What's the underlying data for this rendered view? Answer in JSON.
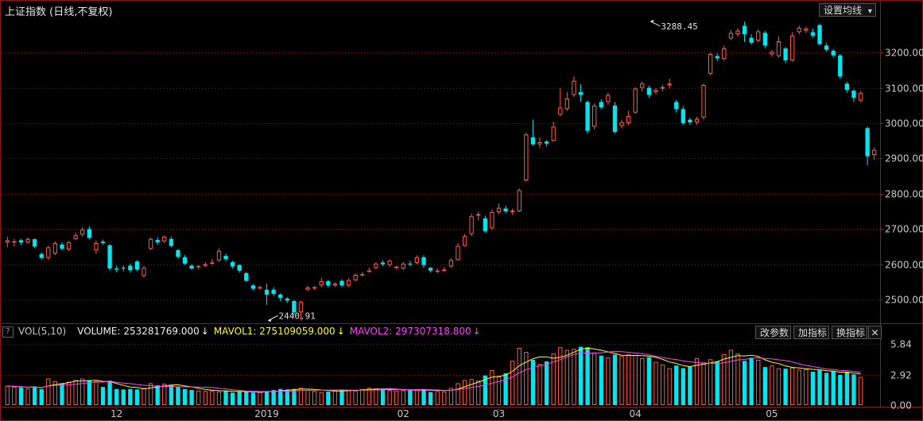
{
  "header": {
    "title": "上证指数 (日线,不复权)",
    "settings_button": "设置均线",
    "settings_arrow": "▾"
  },
  "volume_header": {
    "help": "?",
    "indicator": "VOL(5,10)",
    "volume": "VOLUME: 253281769.000",
    "mavol1": "MAVOL1: 275109059.000",
    "mavol2": "MAVOL2: 297307318.800",
    "arrow": "↓",
    "btn_modify": "改参数",
    "btn_add": "加指标",
    "btn_switch": "换指标",
    "btn_close": "✕"
  },
  "colors": {
    "up": "#ff5a4a",
    "down": "#00e5ee",
    "mavol1": "#ffff00",
    "mavol2": "#ff40ff",
    "grid": "#7a1a1a",
    "axis": "#8a1a1a"
  },
  "chart_data": {
    "type": "candlestick",
    "price_ticks": [
      2500,
      2600,
      2700,
      2800,
      2900,
      3000,
      3100,
      3200
    ],
    "price_tick_labels": [
      "2500.00",
      "2600.00",
      "2700.00",
      "2800.00",
      "2900.00",
      "3000.00",
      "3100.00",
      "3200.00"
    ],
    "ylim": [
      2435,
      3295
    ],
    "volume_ticks": [
      0,
      2.92,
      5.84
    ],
    "volume_tick_labels": [
      "0.00",
      "2.92",
      "5.84"
    ],
    "volume_ylim": [
      0,
      6.1
    ],
    "x_labels": [
      {
        "index": 16,
        "label": "12"
      },
      {
        "index": 38,
        "label": "2019"
      },
      {
        "index": 58,
        "label": "02"
      },
      {
        "index": 72,
        "label": "03"
      },
      {
        "index": 92,
        "label": "04"
      },
      {
        "index": 112,
        "label": "05"
      }
    ],
    "annotations": [
      {
        "index": 38,
        "value": 2440.91,
        "label": "2440.91",
        "kind": "low"
      },
      {
        "index": 94,
        "value": 3288.45,
        "label": "3288.45",
        "kind": "high"
      }
    ],
    "candles": [
      [
        2662,
        2668,
        2648,
        2678
      ],
      [
        2662,
        2665,
        2650,
        2672
      ],
      [
        2668,
        2662,
        2655,
        2672
      ],
      [
        2662,
        2672,
        2658,
        2676
      ],
      [
        2671,
        2650,
        2646,
        2673
      ],
      [
        2629,
        2618,
        2614,
        2634
      ],
      [
        2618,
        2648,
        2612,
        2652
      ],
      [
        2630,
        2660,
        2626,
        2665
      ],
      [
        2656,
        2644,
        2640,
        2662
      ],
      [
        2642,
        2662,
        2638,
        2666
      ],
      [
        2672,
        2682,
        2668,
        2690
      ],
      [
        2684,
        2698,
        2678,
        2706
      ],
      [
        2700,
        2675,
        2670,
        2708
      ],
      [
        2640,
        2660,
        2630,
        2668
      ],
      [
        2664,
        2660,
        2655,
        2670
      ],
      [
        2654,
        2588,
        2582,
        2657
      ],
      [
        2588,
        2585,
        2578,
        2596
      ],
      [
        2590,
        2588,
        2580,
        2596
      ],
      [
        2596,
        2583,
        2576,
        2602
      ],
      [
        2608,
        2585,
        2580,
        2612
      ],
      [
        2567,
        2590,
        2562,
        2596
      ],
      [
        2644,
        2672,
        2640,
        2676
      ],
      [
        2669,
        2662,
        2655,
        2677
      ],
      [
        2665,
        2678,
        2660,
        2682
      ],
      [
        2672,
        2652,
        2648,
        2678
      ],
      [
        2640,
        2621,
        2616,
        2644
      ],
      [
        2620,
        2602,
        2598,
        2626
      ],
      [
        2596,
        2588,
        2584,
        2600
      ],
      [
        2592,
        2595,
        2586,
        2598
      ],
      [
        2596,
        2600,
        2592,
        2606
      ],
      [
        2604,
        2605,
        2598,
        2616
      ],
      [
        2611,
        2638,
        2606,
        2645
      ],
      [
        2624,
        2614,
        2608,
        2630
      ],
      [
        2606,
        2594,
        2588,
        2610
      ],
      [
        2598,
        2582,
        2576,
        2600
      ],
      [
        2575,
        2553,
        2550,
        2578
      ],
      [
        2540,
        2531,
        2526,
        2544
      ],
      [
        2533,
        2535,
        2528,
        2540
      ],
      [
        2528,
        2514,
        2485,
        2545
      ],
      [
        2528,
        2516,
        2510,
        2535
      ],
      [
        2514,
        2505,
        2495,
        2518
      ],
      [
        2503,
        2497,
        2490,
        2507
      ],
      [
        2496,
        2464,
        2455,
        2498
      ],
      [
        2464,
        2494,
        2441,
        2496
      ],
      [
        2528,
        2534,
        2524,
        2540
      ],
      [
        2532,
        2535,
        2527,
        2538
      ],
      [
        2540,
        2552,
        2535,
        2562
      ],
      [
        2552,
        2540,
        2534,
        2556
      ],
      [
        2540,
        2545,
        2535,
        2549
      ],
      [
        2553,
        2540,
        2535,
        2558
      ],
      [
        2540,
        2555,
        2535,
        2560
      ],
      [
        2555,
        2570,
        2552,
        2574
      ],
      [
        2570,
        2572,
        2565,
        2578
      ],
      [
        2580,
        2582,
        2576,
        2590
      ],
      [
        2590,
        2602,
        2585,
        2606
      ],
      [
        2605,
        2600,
        2595,
        2612
      ],
      [
        2598,
        2610,
        2592,
        2614
      ],
      [
        2592,
        2593,
        2586,
        2596
      ],
      [
        2588,
        2602,
        2584,
        2606
      ],
      [
        2602,
        2600,
        2594,
        2610
      ],
      [
        2604,
        2620,
        2600,
        2625
      ],
      [
        2620,
        2598,
        2590,
        2626
      ],
      [
        2590,
        2582,
        2576,
        2592
      ],
      [
        2580,
        2582,
        2575,
        2588
      ],
      [
        2582,
        2585,
        2578,
        2592
      ],
      [
        2594,
        2612,
        2590,
        2618
      ],
      [
        2612,
        2652,
        2610,
        2660
      ],
      [
        2652,
        2680,
        2650,
        2686
      ],
      [
        2686,
        2736,
        2680,
        2744
      ],
      [
        2738,
        2742,
        2725,
        2749
      ],
      [
        2730,
        2694,
        2690,
        2738
      ],
      [
        2702,
        2748,
        2698,
        2755
      ],
      [
        2748,
        2760,
        2742,
        2772
      ],
      [
        2758,
        2750,
        2744,
        2766
      ],
      [
        2748,
        2752,
        2740,
        2758
      ],
      [
        2750,
        2810,
        2748,
        2815
      ],
      [
        2838,
        2968,
        2834,
        2973
      ],
      [
        2960,
        2940,
        2936,
        3010
      ],
      [
        2940,
        2946,
        2930,
        2960
      ],
      [
        2948,
        2942,
        2934,
        2952
      ],
      [
        2950,
        2990,
        2948,
        3004
      ],
      [
        3024,
        3044,
        3020,
        3100
      ],
      [
        3040,
        3070,
        3034,
        3088
      ],
      [
        3080,
        3120,
        3074,
        3132
      ],
      [
        3088,
        3080,
        3060,
        3110
      ],
      [
        3060,
        2978,
        2970,
        3065
      ],
      [
        2990,
        3050,
        2982,
        3056
      ],
      [
        3060,
        3045,
        3040,
        3068
      ],
      [
        3060,
        3080,
        3052,
        3086
      ],
      [
        3050,
        2975,
        2970,
        3060
      ],
      [
        2992,
        3002,
        2985,
        3010
      ],
      [
        3000,
        3020,
        2995,
        3035
      ],
      [
        3030,
        3098,
        3026,
        3102
      ],
      [
        3100,
        3112,
        3090,
        3118
      ],
      [
        3100,
        3080,
        3072,
        3106
      ],
      [
        3088,
        3094,
        3082,
        3100
      ],
      [
        3098,
        3102,
        3090,
        3108
      ],
      [
        3107,
        3112,
        3098,
        3126
      ],
      [
        3060,
        3040,
        3030,
        3066
      ],
      [
        3040,
        3000,
        2994,
        3048
      ],
      [
        3010,
        3002,
        2995,
        3015
      ],
      [
        3002,
        3012,
        2996,
        3018
      ],
      [
        3016,
        3108,
        3010,
        3112
      ],
      [
        3140,
        3196,
        3136,
        3200
      ],
      [
        3190,
        3184,
        3176,
        3198
      ],
      [
        3182,
        3212,
        3178,
        3220
      ],
      [
        3240,
        3256,
        3236,
        3264
      ],
      [
        3252,
        3262,
        3245,
        3268
      ],
      [
        3276,
        3252,
        3230,
        3288
      ],
      [
        3242,
        3228,
        3222,
        3252
      ],
      [
        3234,
        3260,
        3228,
        3266
      ],
      [
        3256,
        3220,
        3212,
        3262
      ],
      [
        3195,
        3202,
        3188,
        3208
      ],
      [
        3190,
        3232,
        3186,
        3246
      ],
      [
        3212,
        3178,
        3170,
        3216
      ],
      [
        3178,
        3248,
        3174,
        3258
      ],
      [
        3258,
        3270,
        3252,
        3276
      ],
      [
        3262,
        3268,
        3255,
        3274
      ],
      [
        3258,
        3248,
        3242,
        3268
      ],
      [
        3278,
        3224,
        3220,
        3282
      ],
      [
        3220,
        3208,
        3202,
        3228
      ],
      [
        3205,
        3192,
        3186,
        3210
      ],
      [
        3192,
        3132,
        3126,
        3196
      ],
      [
        3112,
        3094,
        3086,
        3118
      ],
      [
        3092,
        3072,
        3060,
        3096
      ],
      [
        3064,
        3086,
        3060,
        3090
      ],
      [
        2986,
        2906,
        2880,
        2990
      ],
      [
        2910,
        2924,
        2896,
        2932
      ]
    ],
    "volumes": [
      1.85,
      1.75,
      1.7,
      1.6,
      1.8,
      1.55,
      2.55,
      2.3,
      2.1,
      2.25,
      2.4,
      2.55,
      2.4,
      2.3,
      1.75,
      2.35,
      1.55,
      1.5,
      1.55,
      1.5,
      1.65,
      2.1,
      1.9,
      2.05,
      1.95,
      1.75,
      1.55,
      1.45,
      1.4,
      1.35,
      1.4,
      1.3,
      1.4,
      1.2,
      1.3,
      1.25,
      1.2,
      1.25,
      1.35,
      1.45,
      1.55,
      1.5,
      1.55,
      1.65,
      1.45,
      1.35,
      1.25,
      1.3,
      1.4,
      1.5,
      1.45,
      1.4,
      1.55,
      1.65,
      1.6,
      1.55,
      1.45,
      1.4,
      1.45,
      1.4,
      1.5,
      1.55,
      1.25,
      1.35,
      1.3,
      1.65,
      2.1,
      2.4,
      2.5,
      2.35,
      2.85,
      3.35,
      2.75,
      3.05,
      4.25,
      5.5,
      5.1,
      4.35,
      3.95,
      4.2,
      4.95,
      5.55,
      5.3,
      5.4,
      5.6,
      5.55,
      5.05,
      4.75,
      4.6,
      4.85,
      4.7,
      4.9,
      4.8,
      4.5,
      4.6,
      4.15,
      3.9,
      3.55,
      3.8,
      3.55,
      3.7,
      4.5,
      4.1,
      4.4,
      4.2,
      4.9,
      5.3,
      4.95,
      4.25,
      4.55,
      4.35,
      3.65,
      3.8,
      3.55,
      3.5,
      3.6,
      3.4,
      3.45,
      3.2,
      3.35,
      3.1,
      3.25,
      2.9,
      3.2,
      2.95,
      2.7
    ]
  }
}
